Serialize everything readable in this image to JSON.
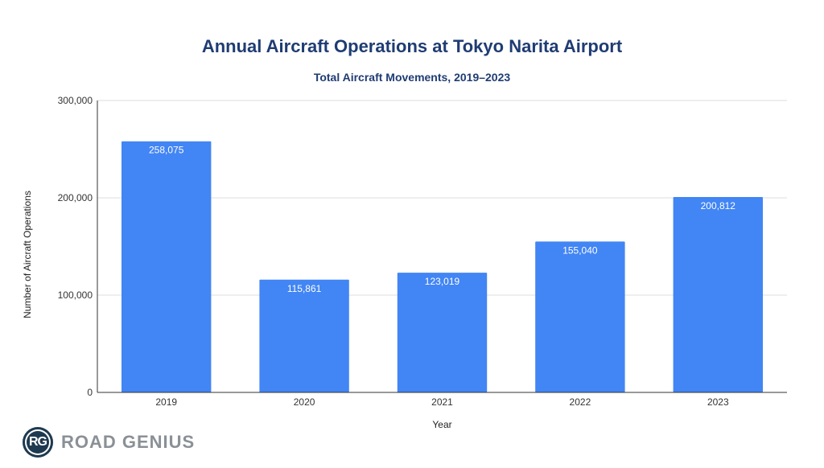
{
  "chart_data": {
    "type": "bar",
    "title": "Annual Aircraft Operations at Tokyo Narita Airport",
    "subtitle": "Total Aircraft Movements, 2019–2023",
    "xlabel": "Year",
    "ylabel": "Number of Aircraft Operations",
    "categories": [
      "2019",
      "2020",
      "2021",
      "2022",
      "2023"
    ],
    "values": [
      258075,
      115861,
      123019,
      155040,
      200812
    ],
    "data_labels": [
      "258,075",
      "115,861",
      "123,019",
      "155,040",
      "200,812"
    ],
    "ylim": [
      0,
      300000
    ],
    "yticks": [
      0,
      100000,
      200000,
      300000
    ],
    "ytick_labels": [
      "0",
      "100,000",
      "200,000",
      "300,000"
    ],
    "grid": true,
    "legend": "none",
    "bar_color": "#4285f4"
  },
  "branding": {
    "logo_initials": "RG",
    "logo_text": "ROAD GENIUS"
  }
}
